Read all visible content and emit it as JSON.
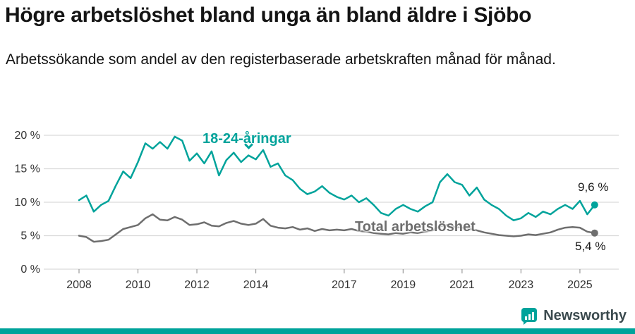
{
  "page": {
    "title": "Högre arbetslöshet bland unga än bland äldre i Sjöbo",
    "subtitle": "Arbetssökande som andel av den registerbaserade arbetskraften månad för månad."
  },
  "branding": {
    "name": "Newsworthy",
    "accent": "#00a39b",
    "text_color": "#3b4a4e"
  },
  "chart_data": {
    "type": "line",
    "title": "Högre arbetslöshet bland unga än bland äldre i Sjöbo",
    "subtitle": "Arbetssökande som andel av den registerbaserade arbetskraften månad för månad.",
    "xlabel": "",
    "ylabel": "",
    "ylim": [
      0,
      21
    ],
    "xlim": [
      2008.0,
      2025.5
    ],
    "grid": true,
    "legend": "inline-labels",
    "x_start": 2008.0,
    "x_step": 0.25,
    "y_ticks": [
      {
        "value": 0,
        "label": "0 %"
      },
      {
        "value": 5,
        "label": "5 %"
      },
      {
        "value": 10,
        "label": "10 %"
      },
      {
        "value": 15,
        "label": "15 %"
      },
      {
        "value": 20,
        "label": "20 %"
      }
    ],
    "x_ticks": [
      {
        "value": 2008,
        "label": "2008"
      },
      {
        "value": 2010,
        "label": "2010"
      },
      {
        "value": 2012,
        "label": "2012"
      },
      {
        "value": 2014,
        "label": "2014"
      },
      {
        "value": 2017,
        "label": "2017"
      },
      {
        "value": 2019,
        "label": "2019"
      },
      {
        "value": 2021,
        "label": "2021"
      },
      {
        "value": 2023,
        "label": "2023"
      },
      {
        "value": 2025,
        "label": "2025"
      }
    ],
    "series": [
      {
        "name": "18-24-åringar",
        "color": "#00a39b",
        "end_label": "9,6 %",
        "end_value": 9.6,
        "values": [
          10.3,
          11.0,
          8.6,
          9.6,
          10.2,
          12.5,
          14.6,
          13.6,
          16.0,
          18.8,
          18.0,
          19.0,
          18.0,
          19.8,
          19.2,
          16.2,
          17.3,
          15.8,
          17.6,
          14.0,
          16.3,
          17.4,
          16.0,
          17.0,
          16.4,
          17.8,
          15.3,
          15.8,
          14.0,
          13.3,
          12.0,
          11.2,
          11.6,
          12.4,
          11.4,
          10.8,
          10.4,
          11.0,
          10.0,
          10.6,
          9.6,
          8.4,
          8.0,
          9.0,
          9.6,
          9.0,
          8.6,
          9.4,
          10.0,
          13.0,
          14.2,
          13.0,
          12.6,
          11.0,
          12.2,
          10.4,
          9.6,
          9.0,
          8.0,
          7.3,
          7.6,
          8.4,
          7.8,
          8.6,
          8.2,
          9.0,
          9.6,
          9.0,
          10.2,
          8.2,
          9.6
        ]
      },
      {
        "name": "Total arbetslöshet",
        "color": "#6e6e6e",
        "end_label": "5,4 %",
        "end_value": 5.4,
        "values": [
          5.0,
          4.8,
          4.1,
          4.2,
          4.4,
          5.2,
          6.0,
          6.3,
          6.6,
          7.6,
          8.2,
          7.4,
          7.3,
          7.8,
          7.4,
          6.6,
          6.7,
          7.0,
          6.5,
          6.4,
          6.9,
          7.2,
          6.8,
          6.6,
          6.8,
          7.5,
          6.5,
          6.2,
          6.1,
          6.3,
          5.9,
          6.1,
          5.7,
          6.0,
          5.8,
          5.9,
          5.8,
          6.0,
          5.7,
          5.6,
          5.4,
          5.3,
          5.2,
          5.4,
          5.3,
          5.5,
          5.4,
          5.6,
          5.8,
          6.4,
          6.6,
          6.3,
          6.2,
          6.0,
          5.8,
          5.5,
          5.3,
          5.1,
          5.0,
          4.9,
          5.0,
          5.2,
          5.1,
          5.3,
          5.5,
          5.9,
          6.2,
          6.3,
          6.2,
          5.6,
          5.4
        ]
      }
    ]
  }
}
